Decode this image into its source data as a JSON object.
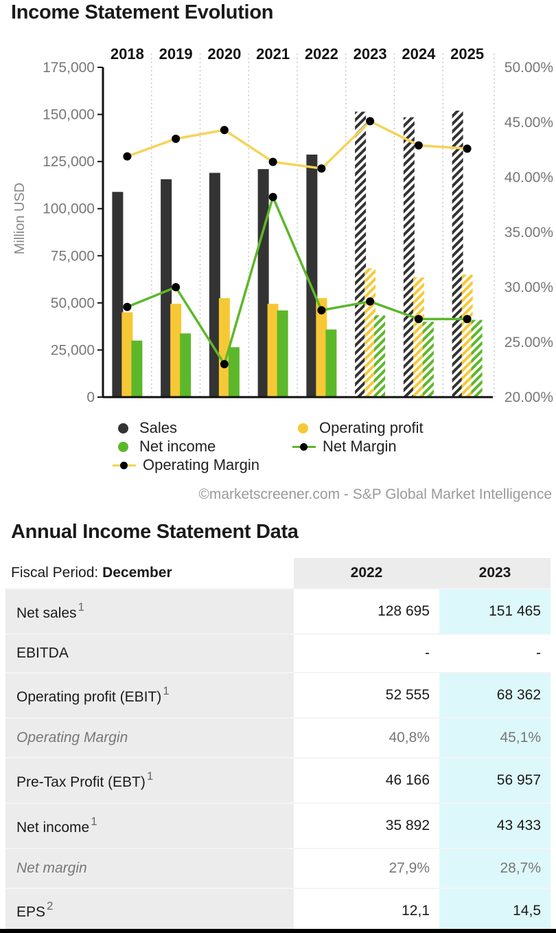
{
  "page": {
    "chart_title": "Income Statement Evolution",
    "table_title": "Annual Income Statement Data",
    "credit": "©marketscreener.com - S&P Global Market Intelligence"
  },
  "colors": {
    "sales": "#333333",
    "operating_profit": "#f7c836",
    "net_income": "#5cb82a",
    "net_margin": "#5cb82a",
    "operating_margin": "#f5d35a",
    "highlight": "#ddf8fb"
  },
  "chart_data": {
    "type": "bar",
    "categories": [
      "2018",
      "2019",
      "2020",
      "2021",
      "2022",
      "2023",
      "2024",
      "2025"
    ],
    "estimated_from": "2023",
    "ylabel": "Million USD",
    "ylim": [
      0,
      175000
    ],
    "yticks": [
      "0",
      "25,000",
      "50,000",
      "75,000",
      "100,000",
      "125,000",
      "150,000",
      "175,000"
    ],
    "y2lim": [
      20,
      50
    ],
    "y2ticks": [
      "20.00%",
      "25.00%",
      "30.00%",
      "35.00%",
      "40.00%",
      "45.00%",
      "50.00%"
    ],
    "series": [
      {
        "name": "Sales",
        "kind": "bar",
        "axis": "left",
        "values": [
          108900,
          115600,
          119000,
          121000,
          128695,
          151465,
          148500,
          152000
        ]
      },
      {
        "name": "Operating profit",
        "kind": "bar",
        "axis": "left",
        "values": [
          45000,
          49500,
          52500,
          49500,
          52555,
          68362,
          63500,
          65000
        ]
      },
      {
        "name": "Net income",
        "kind": "bar",
        "axis": "left",
        "values": [
          30000,
          33800,
          26500,
          46000,
          35892,
          43433,
          40000,
          41000
        ]
      },
      {
        "name": "Net Margin",
        "kind": "line",
        "axis": "right",
        "values": [
          28.2,
          30.0,
          23.0,
          38.2,
          27.9,
          28.7,
          27.1,
          27.1
        ]
      },
      {
        "name": "Operating Margin",
        "kind": "line",
        "axis": "right",
        "values": [
          41.9,
          43.5,
          44.3,
          41.4,
          40.8,
          45.1,
          42.9,
          42.6
        ]
      }
    ],
    "legend": [
      "Sales",
      "Operating profit",
      "Net income",
      "Net Margin",
      "Operating Margin"
    ],
    "legend_position": "bottom",
    "grid": "vertical dotted"
  },
  "table": {
    "period_label": "Fiscal Period:",
    "period_value": "December",
    "columns": [
      "2022",
      "2023"
    ],
    "rows": [
      {
        "label": "Net sales",
        "note": "1",
        "values": [
          "128 695",
          "151 465"
        ],
        "italic": false
      },
      {
        "label": "EBITDA",
        "note": "",
        "values": [
          "-",
          "-"
        ],
        "italic": false
      },
      {
        "label": "Operating profit (EBIT)",
        "note": "1",
        "values": [
          "52 555",
          "68 362"
        ],
        "italic": false
      },
      {
        "label": "Operating Margin",
        "note": "",
        "values": [
          "40,8%",
          "45,1%"
        ],
        "italic": true
      },
      {
        "label": "Pre-Tax Profit (EBT)",
        "note": "1",
        "values": [
          "46 166",
          "56 957"
        ],
        "italic": false
      },
      {
        "label": "Net income",
        "note": "1",
        "values": [
          "35 892",
          "43 433"
        ],
        "italic": false
      },
      {
        "label": "Net margin",
        "note": "",
        "values": [
          "27,9%",
          "28,7%"
        ],
        "italic": true
      },
      {
        "label": "EPS",
        "note": "2",
        "values": [
          "12,1",
          "14,5"
        ],
        "italic": false
      }
    ]
  }
}
